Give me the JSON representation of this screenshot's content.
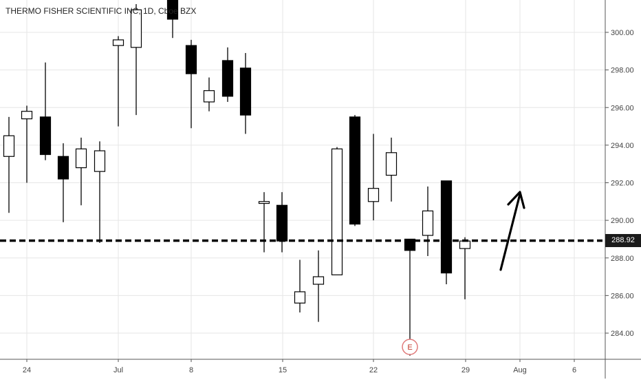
{
  "chart_data": {
    "type": "candlestick",
    "title": "THERMO FISHER SCIENTIFIC INC, 1D, Cboe BZX",
    "xlabel": "",
    "ylabel": "",
    "ylim": [
      282.5,
      301.8
    ],
    "y_ticks": [
      "300.00",
      "298.00",
      "296.00",
      "294.00",
      "292.00",
      "290.00",
      "288.00",
      "286.00",
      "284.00"
    ],
    "x_tick_labels": [
      "24",
      "Jul",
      "8",
      "15",
      "22",
      "29",
      "Aug",
      "6"
    ],
    "grid": true,
    "candles": [
      {
        "date": "Jun 21",
        "open": 293.4,
        "high": 295.5,
        "low": 290.4,
        "close": 294.5
      },
      {
        "date": "Jun 24",
        "open": 295.4,
        "high": 296.1,
        "low": 292.0,
        "close": 295.8
      },
      {
        "date": "Jun 25",
        "open": 295.5,
        "high": 298.4,
        "low": 293.2,
        "close": 293.5
      },
      {
        "date": "Jun 26",
        "open": 293.4,
        "high": 294.1,
        "low": 289.9,
        "close": 292.2
      },
      {
        "date": "Jun 27",
        "open": 292.8,
        "high": 294.4,
        "low": 290.8,
        "close": 293.8
      },
      {
        "date": "Jun 28",
        "open": 292.6,
        "high": 294.2,
        "low": 288.8,
        "close": 293.7
      },
      {
        "date": "Jul 1",
        "open": 299.3,
        "high": 299.8,
        "low": 295.0,
        "close": 299.6
      },
      {
        "date": "Jul 2",
        "open": 299.2,
        "high": 301.5,
        "low": 295.6,
        "close": 301.2
      },
      {
        "date": "Jul 5",
        "open": 301.8,
        "high": 301.8,
        "low": 299.7,
        "close": 300.7
      },
      {
        "date": "Jul 8",
        "open": 299.3,
        "high": 299.6,
        "low": 294.9,
        "close": 297.8
      },
      {
        "date": "Jul 9",
        "open": 296.3,
        "high": 297.6,
        "low": 295.8,
        "close": 296.9
      },
      {
        "date": "Jul 10",
        "open": 298.5,
        "high": 299.2,
        "low": 296.3,
        "close": 296.6
      },
      {
        "date": "Jul 11",
        "open": 298.1,
        "high": 298.9,
        "low": 294.6,
        "close": 295.6
      },
      {
        "date": "Jul 12",
        "open": 290.9,
        "high": 291.5,
        "low": 288.3,
        "close": 291.0
      },
      {
        "date": "Jul 15",
        "open": 290.8,
        "high": 291.5,
        "low": 288.3,
        "close": 288.9
      },
      {
        "date": "Jul 16",
        "open": 285.6,
        "high": 287.9,
        "low": 285.1,
        "close": 286.2
      },
      {
        "date": "Jul 17",
        "open": 286.6,
        "high": 288.4,
        "low": 284.6,
        "close": 287.0
      },
      {
        "date": "Jul 18",
        "open": 287.1,
        "high": 293.9,
        "low": 287.1,
        "close": 293.8
      },
      {
        "date": "Jul 19",
        "open": 295.5,
        "high": 295.6,
        "low": 289.7,
        "close": 289.8
      },
      {
        "date": "Jul 22",
        "open": 291.0,
        "high": 294.6,
        "low": 290.0,
        "close": 291.7
      },
      {
        "date": "Jul 23",
        "open": 292.4,
        "high": 294.4,
        "low": 291.0,
        "close": 293.6
      },
      {
        "date": "Jul 24",
        "open": 289.0,
        "high": 289.0,
        "low": 282.8,
        "close": 288.4
      },
      {
        "date": "Jul 25",
        "open": 289.2,
        "high": 291.8,
        "low": 288.1,
        "close": 290.5
      },
      {
        "date": "Jul 26",
        "open": 292.1,
        "high": 292.1,
        "low": 286.6,
        "close": 287.2
      },
      {
        "date": "Jul 29",
        "open": 288.5,
        "high": 289.1,
        "low": 285.8,
        "close": 288.9
      }
    ],
    "last_price": "288.92",
    "horizontal_line": 288.92,
    "annotations": [
      {
        "type": "earnings-marker",
        "label": "E",
        "date": "Jul 24"
      }
    ],
    "arrow": {
      "direction": "up"
    }
  }
}
